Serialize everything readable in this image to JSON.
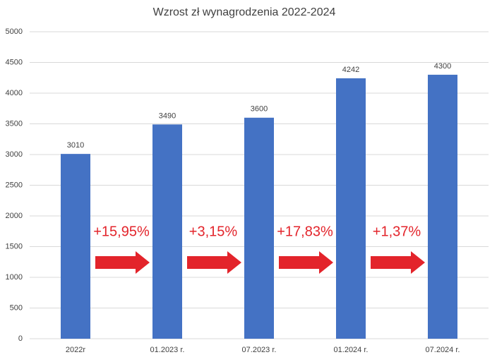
{
  "chart_data": {
    "type": "bar",
    "title": "Wzrost zł wynagrodzenia 2022-2024",
    "categories": [
      "2022r",
      "01.2023 r.",
      "07.2023 r.",
      "01.2024 r.",
      "07.2024 r."
    ],
    "values": [
      3010,
      3490,
      3600,
      4242,
      4300
    ],
    "color": "#4472c4",
    "ylim": [
      0,
      5000
    ],
    "yticks": [
      0,
      500,
      1000,
      1500,
      2000,
      2500,
      3000,
      3500,
      4000,
      4500,
      5000
    ],
    "grid": true,
    "annotations": [
      "+15,95%",
      "+3,15%",
      "+17,83%",
      "+1,37%"
    ],
    "annotation_color": "#e3242b"
  }
}
